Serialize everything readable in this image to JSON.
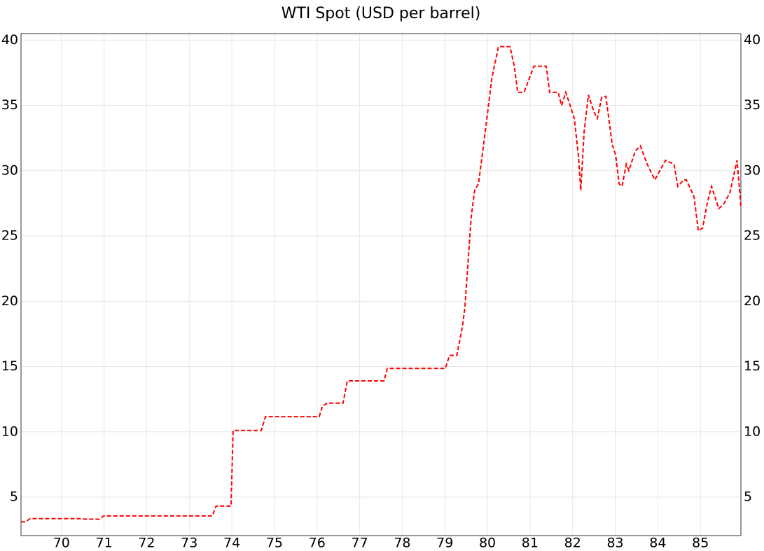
{
  "chart_data": {
    "type": "line",
    "title": "WTI Spot (USD per barrel)",
    "x": [
      69.05,
      69.16,
      69.26,
      70.49,
      70.56,
      70.89,
      70.99,
      73.54,
      73.63,
      73.98,
      74.03,
      74.69,
      74.79,
      76.05,
      76.13,
      76.25,
      76.61,
      76.71,
      77.57,
      77.65,
      79.01,
      79.11,
      79.28,
      79.41,
      79.47,
      79.62,
      79.7,
      79.79,
      79.87,
      79.93,
      80.1,
      80.16,
      80.26,
      80.53,
      80.63,
      80.71,
      80.86,
      81.09,
      81.38,
      81.46,
      81.66,
      81.74,
      81.84,
      82.04,
      82.14,
      82.19,
      82.27,
      82.37,
      82.5,
      82.58,
      82.68,
      82.78,
      82.93,
      83.01,
      83.09,
      83.16,
      83.26,
      83.32,
      83.47,
      83.59,
      83.75,
      83.93,
      84.18,
      84.38,
      84.47,
      84.61,
      84.67,
      84.85,
      84.95,
      85.05,
      85.16,
      85.26,
      85.43,
      85.54,
      85.69,
      85.86,
      85.95
    ],
    "series": [
      {
        "name": "WTI Spot",
        "color": "#ff0000",
        "values": [
          3.1,
          3.1,
          3.35,
          3.35,
          3.31,
          3.31,
          3.56,
          3.56,
          4.31,
          4.31,
          10.11,
          10.11,
          11.16,
          11.16,
          12.0,
          12.2,
          12.2,
          13.9,
          13.9,
          14.85,
          14.85,
          15.85,
          15.85,
          18.0,
          19.5,
          26.5,
          28.5,
          29.0,
          31.0,
          32.5,
          37.0,
          38.0,
          39.5,
          39.5,
          38.0,
          36.0,
          36.0,
          38.0,
          38.0,
          36.0,
          36.0,
          35.0,
          36.0,
          34.0,
          31.0,
          28.5,
          33.0,
          35.8,
          34.5,
          34.0,
          35.6,
          35.7,
          32.0,
          31.2,
          29.0,
          28.8,
          30.5,
          30.0,
          31.5,
          31.9,
          30.5,
          29.3,
          30.8,
          30.5,
          28.8,
          29.3,
          29.3,
          28.0,
          25.4,
          25.6,
          27.5,
          28.8,
          27.1,
          27.4,
          28.3,
          30.8,
          27.3
        ]
      }
    ],
    "xlim": [
      69.05,
      85.95
    ],
    "xticks": [
      70,
      71,
      72,
      73,
      74,
      75,
      76,
      77,
      78,
      79,
      80,
      81,
      82,
      83,
      84,
      85
    ],
    "ylim": [
      2.05,
      40.5
    ],
    "yticks": [
      5,
      10,
      15,
      20,
      25,
      30,
      35,
      40
    ],
    "grid": true
  }
}
